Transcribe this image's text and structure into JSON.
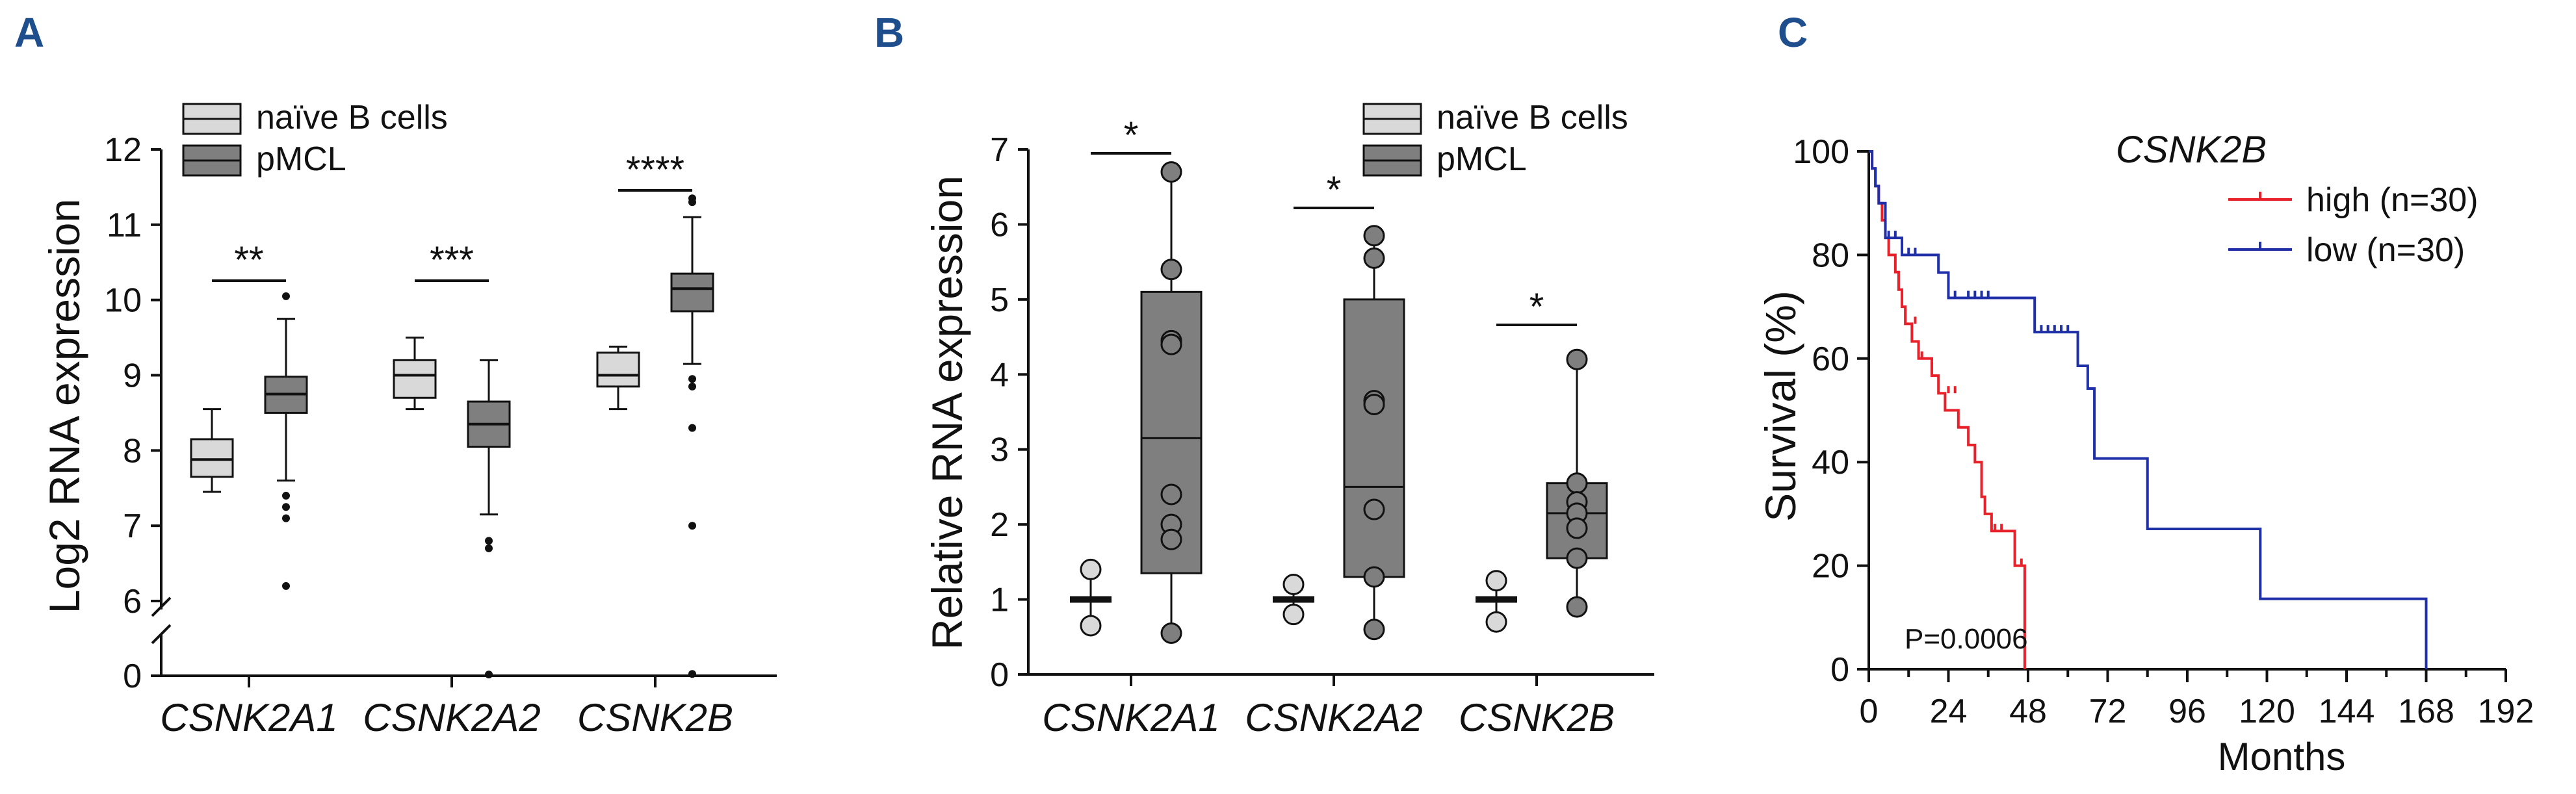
{
  "panels": {
    "A": {
      "letter": "A",
      "chart_data": {
        "type": "box",
        "ylabel": "Log2 RNA expression",
        "ylim": [
          0,
          12
        ],
        "y_axis_break": [
          0,
          6
        ],
        "yticks": [
          0,
          6,
          7,
          8,
          9,
          10,
          11,
          12
        ],
        "categories": [
          "CSNK2A1",
          "CSNK2A2",
          "CSNK2B"
        ],
        "legend": {
          "position": "top",
          "entries": [
            {
              "name": "naïve B cells",
              "color": "#d9d9d9"
            },
            {
              "name": "pMCL",
              "color": "#7f7f7f"
            }
          ]
        },
        "significance": [
          "**",
          "***",
          "****"
        ],
        "series": [
          {
            "name": "naïve B cells",
            "color": "#d9d9d9",
            "boxes": [
              {
                "whislo": 7.45,
                "q1": 7.65,
                "med": 7.88,
                "q3": 8.15,
                "whishi": 8.55,
                "fliers": []
              },
              {
                "whislo": 8.55,
                "q1": 8.7,
                "med": 9.0,
                "q3": 9.2,
                "whishi": 9.5,
                "fliers": []
              },
              {
                "whislo": 8.55,
                "q1": 8.85,
                "med": 9.0,
                "q3": 9.3,
                "whishi": 9.38,
                "fliers": []
              }
            ]
          },
          {
            "name": "pMCL",
            "color": "#7f7f7f",
            "boxes": [
              {
                "whislo": 7.6,
                "q1": 8.5,
                "med": 8.75,
                "q3": 8.98,
                "whishi": 9.75,
                "fliers": [
                  10.05,
                  7.4,
                  7.25,
                  7.1,
                  6.2
                ]
              },
              {
                "whislo": 7.15,
                "q1": 8.05,
                "med": 8.35,
                "q3": 8.65,
                "whishi": 9.2,
                "fliers": [
                  6.8,
                  6.7,
                  0.2
                ]
              },
              {
                "whislo": 9.15,
                "q1": 9.85,
                "med": 10.15,
                "q3": 10.35,
                "whishi": 11.1,
                "fliers": [
                  11.35,
                  11.3,
                  8.95,
                  8.85,
                  8.3,
                  7.0,
                  0.3
                ]
              }
            ]
          }
        ]
      }
    },
    "B": {
      "letter": "B",
      "chart_data": {
        "type": "box",
        "ylabel": "Relative RNA expression",
        "ylim": [
          0,
          7
        ],
        "yticks": [
          0,
          1,
          2,
          3,
          4,
          5,
          6,
          7
        ],
        "categories": [
          "CSNK2A1",
          "CSNK2A2",
          "CSNK2B"
        ],
        "legend": {
          "position": "top-right",
          "entries": [
            {
              "name": "naïve B cells",
              "color": "#d9d9d9"
            },
            {
              "name": "pMCL",
              "color": "#7f7f7f"
            }
          ]
        },
        "significance": [
          "*",
          "*",
          "*"
        ],
        "series": [
          {
            "name": "naïve B cells",
            "color": "#d9d9d9",
            "boxes": [
              {
                "whislo": 0.65,
                "q1": 1.0,
                "med": 1.0,
                "q3": 1.0,
                "whishi": 1.4,
                "points": [
                  1.4,
                  0.65
                ]
              },
              {
                "whislo": 0.8,
                "q1": 0.97,
                "med": 1.0,
                "q3": 1.03,
                "whishi": 1.2,
                "points": [
                  1.2,
                  0.8
                ]
              },
              {
                "whislo": 0.7,
                "q1": 1.0,
                "med": 1.0,
                "q3": 1.0,
                "whishi": 1.25,
                "points": [
                  1.25,
                  0.7
                ]
              }
            ]
          },
          {
            "name": "pMCL",
            "color": "#7f7f7f",
            "boxes": [
              {
                "whislo": 0.55,
                "q1": 1.35,
                "med": 3.15,
                "q3": 5.1,
                "whishi": 6.7,
                "points": [
                  6.7,
                  5.4,
                  4.45,
                  4.4,
                  2.4,
                  2.0,
                  1.8,
                  0.55
                ]
              },
              {
                "whislo": 0.6,
                "q1": 1.3,
                "med": 2.5,
                "q3": 5.0,
                "whishi": 5.85,
                "points": [
                  5.85,
                  5.55,
                  3.65,
                  3.6,
                  2.2,
                  1.3,
                  0.6
                ]
              },
              {
                "whislo": 0.9,
                "q1": 1.55,
                "med": 2.15,
                "q3": 2.55,
                "whishi": 4.2,
                "points": [
                  4.2,
                  2.55,
                  2.3,
                  2.15,
                  1.95,
                  1.55,
                  0.9
                ]
              }
            ]
          }
        ]
      }
    },
    "C": {
      "letter": "C",
      "chart_data": {
        "type": "line",
        "step": true,
        "title": "CSNK2B",
        "xlabel": "Months",
        "ylabel": "Survival (%)",
        "xlim": [
          0,
          192
        ],
        "ylim": [
          0,
          100
        ],
        "xticks": [
          0,
          24,
          48,
          72,
          96,
          120,
          144,
          168,
          192
        ],
        "yticks": [
          0,
          20,
          40,
          60,
          80,
          100
        ],
        "annotation": "P=0.0006",
        "legend": {
          "position": "top-right"
        },
        "series": [
          {
            "name": "high (n=30)",
            "color": "#e8202a",
            "x": [
              0,
              1,
              2,
              3,
              4,
              5,
              6,
              8,
              9,
              10,
              11,
              13,
              15,
              19,
              21,
              23,
              27,
              30,
              32,
              34,
              35,
              37,
              44,
              47
            ],
            "y": [
              100,
              96.7,
              93.3,
              90,
              86.7,
              83.3,
              80,
              76.7,
              73.3,
              70,
              66.7,
              63.3,
              60,
              56.7,
              53.3,
              50,
              46.7,
              43.3,
              40,
              33.3,
              30,
              26.7,
              20,
              0
            ],
            "censored": [
              [
                14,
                66.7
              ],
              [
                16,
                60
              ],
              [
                24,
                53.3
              ],
              [
                26,
                53.3
              ],
              [
                38,
                26.7
              ],
              [
                40,
                26.7
              ],
              [
                46,
                20
              ]
            ]
          },
          {
            "name": "low (n=30)",
            "color": "#1f2fa8",
            "x": [
              0,
              1,
              2,
              3,
              5,
              10,
              21,
              24,
              50,
              63,
              66,
              68,
              84,
              118,
              168
            ],
            "y": [
              100,
              96.7,
              93.3,
              90,
              83.3,
              80,
              76.6,
              71.7,
              65.1,
              58.6,
              54.2,
              40.7,
              27.1,
              13.6,
              0
            ],
            "censored": [
              [
                6,
                83.3
              ],
              [
                8,
                83.3
              ],
              [
                12,
                80
              ],
              [
                14,
                80
              ],
              [
                26,
                71.7
              ],
              [
                30,
                71.7
              ],
              [
                32,
                71.7
              ],
              [
                34,
                71.7
              ],
              [
                36,
                71.7
              ],
              [
                52,
                65.1
              ],
              [
                54,
                65.1
              ],
              [
                56,
                65.1
              ],
              [
                58,
                65.1
              ],
              [
                60,
                65.1
              ]
            ]
          }
        ]
      }
    }
  }
}
